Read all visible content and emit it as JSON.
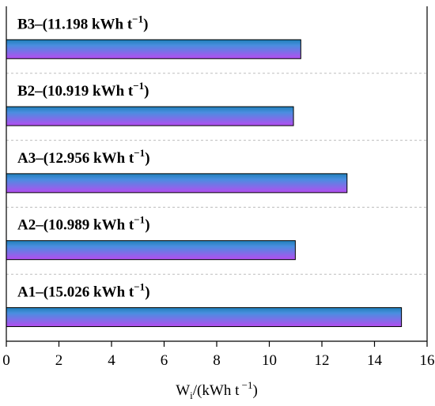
{
  "chart_data": {
    "type": "bar",
    "orientation": "horizontal",
    "categories": [
      "A1",
      "A2",
      "A3",
      "B2",
      "B3"
    ],
    "values": [
      15.026,
      10.989,
      12.956,
      10.919,
      11.198
    ],
    "bar_labels": [
      {
        "prefix": "A1–(15.026 kWh t",
        "sup": "−1",
        "suffix": ")"
      },
      {
        "prefix": "A2–(10.989 kWh t",
        "sup": "−1",
        "suffix": ")"
      },
      {
        "prefix": "A3–(12.956 kWh t",
        "sup": "−1",
        "suffix": ")"
      },
      {
        "prefix": "B2–(10.919 kWh t",
        "sup": "−1",
        "suffix": ")"
      },
      {
        "prefix": "B3–(11.198 kWh t",
        "sup": "−1",
        "suffix": ")"
      }
    ],
    "xlabel": {
      "main": "W",
      "sub": "i",
      "unit": "/(kWh t",
      "sup": " −1",
      "close": ")"
    },
    "xlim": [
      0,
      16
    ],
    "xticks": [
      0,
      2,
      4,
      6,
      8,
      10,
      12,
      14,
      16
    ],
    "grid": "dashed horizontal separators",
    "colors": {
      "bar_top": "#1f7fb8",
      "bar_bottom": "#b44df0",
      "grid": "#bdbdbd"
    }
  }
}
